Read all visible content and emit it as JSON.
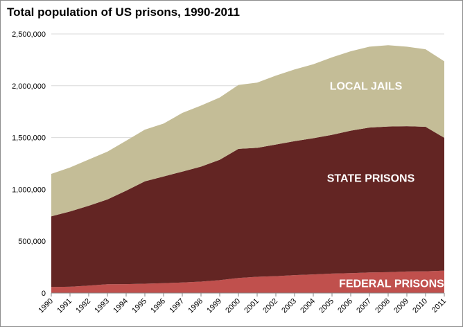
{
  "chart_data": {
    "type": "area",
    "stacked": true,
    "title": "Total population of US prisons, 1990-2011",
    "xlabel": "",
    "ylabel": "",
    "ylim": [
      0,
      2500000
    ],
    "yticks": [
      "0",
      "500,000",
      "1,000,000",
      "1,500,000",
      "2,000,000",
      "2,500,000"
    ],
    "grid": true,
    "categories": [
      "1990",
      "1991",
      "1992",
      "1993",
      "1994",
      "1995",
      "1996",
      "1997",
      "1998",
      "1999",
      "2000",
      "2001",
      "2002",
      "2003",
      "2004",
      "2005",
      "2006",
      "2007",
      "2008",
      "2009",
      "2010",
      "2011"
    ],
    "series": [
      {
        "name": "FEDERAL PRISONS",
        "color": "#c0504d",
        "values": [
          58000,
          61000,
          72000,
          85000,
          86000,
          90000,
          95000,
          102000,
          110000,
          124000,
          145000,
          157000,
          163000,
          173000,
          180000,
          188000,
          192000,
          199000,
          201000,
          208000,
          210000,
          216000
        ]
      },
      {
        "name": "STATE PRISONS",
        "color": "#632523",
        "values": [
          682000,
          726000,
          770000,
          818000,
          902000,
          988000,
          1030000,
          1070000,
          1110000,
          1162000,
          1246000,
          1244000,
          1270000,
          1293000,
          1314000,
          1339000,
          1375000,
          1398000,
          1406000,
          1402000,
          1394000,
          1282000
        ]
      },
      {
        "name": "LOCAL JAILS",
        "color": "#c4bd97",
        "values": [
          410000,
          425000,
          446000,
          461000,
          482000,
          499000,
          510000,
          566000,
          589000,
          601000,
          617000,
          630000,
          665000,
          691000,
          713000,
          747000,
          766000,
          780000,
          785000,
          767000,
          748000,
          738000
        ]
      }
    ]
  }
}
